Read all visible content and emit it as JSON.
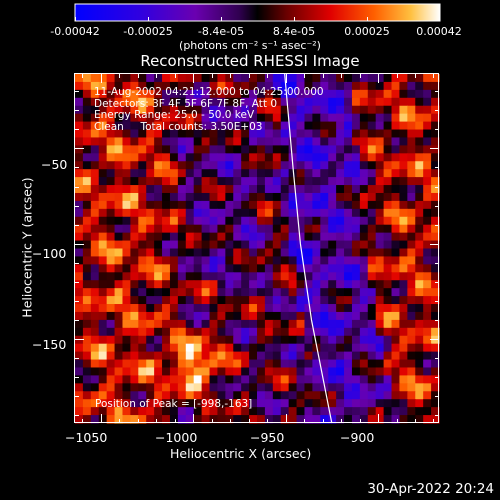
{
  "colorbar": {
    "ticks": [
      "-0.00042",
      "-0.00025",
      "-8.4e-05",
      "8.4e-05",
      "0.00025",
      "0.00042"
    ],
    "tick_values": [
      -0.00042,
      -0.00025,
      -8.4e-05,
      8.4e-05,
      0.00025,
      0.00042
    ],
    "units": "(photons cm⁻² s⁻¹ asec⁻²)",
    "colors": [
      "#0000ff",
      "#4a00c8",
      "#6a0080",
      "#000000",
      "#8a0000",
      "#ff0000",
      "#ff9000",
      "#ffffff"
    ]
  },
  "chart_data": {
    "type": "heatmap",
    "title": "Reconstructed RHESSI Image",
    "xlabel": "Heliocentric X (arcsec)",
    "ylabel": "Heliocentric Y (arcsec)",
    "xlim": [
      -1064,
      -867
    ],
    "ylim": [
      -194,
      -11
    ],
    "xticks": [
      -1050,
      -1000,
      -950,
      -900
    ],
    "yticks": [
      -150,
      -100,
      -50
    ],
    "xtick_labels": [
      "−1050",
      "−1000",
      "−950",
      "−900"
    ],
    "ytick_labels": [
      "−150",
      "−100",
      "−50"
    ],
    "limb_line": [
      [
        -950.5,
        -11
      ],
      [
        -946,
        -60
      ],
      [
        -942,
        -100
      ],
      [
        -936,
        -140
      ],
      [
        -925,
        -194
      ]
    ],
    "peak": {
      "x": -998,
      "y": -163
    },
    "vmin": -0.00042,
    "vmax": 0.00042
  },
  "info": {
    "line1": "11-Aug-2002 04:21:12.000 to 04:25:00.000",
    "line2": "Detectors: 3F 4F 5F 6F 7F 8F, Att 0",
    "line3": "Energy Range: 25.0 - 50.0 keV",
    "line4": "Clean     Total counts: 3.50E+03",
    "peak_text": "Position of Peak = [-998,-163]"
  },
  "timestamp": "30-Apr-2022 20:24"
}
